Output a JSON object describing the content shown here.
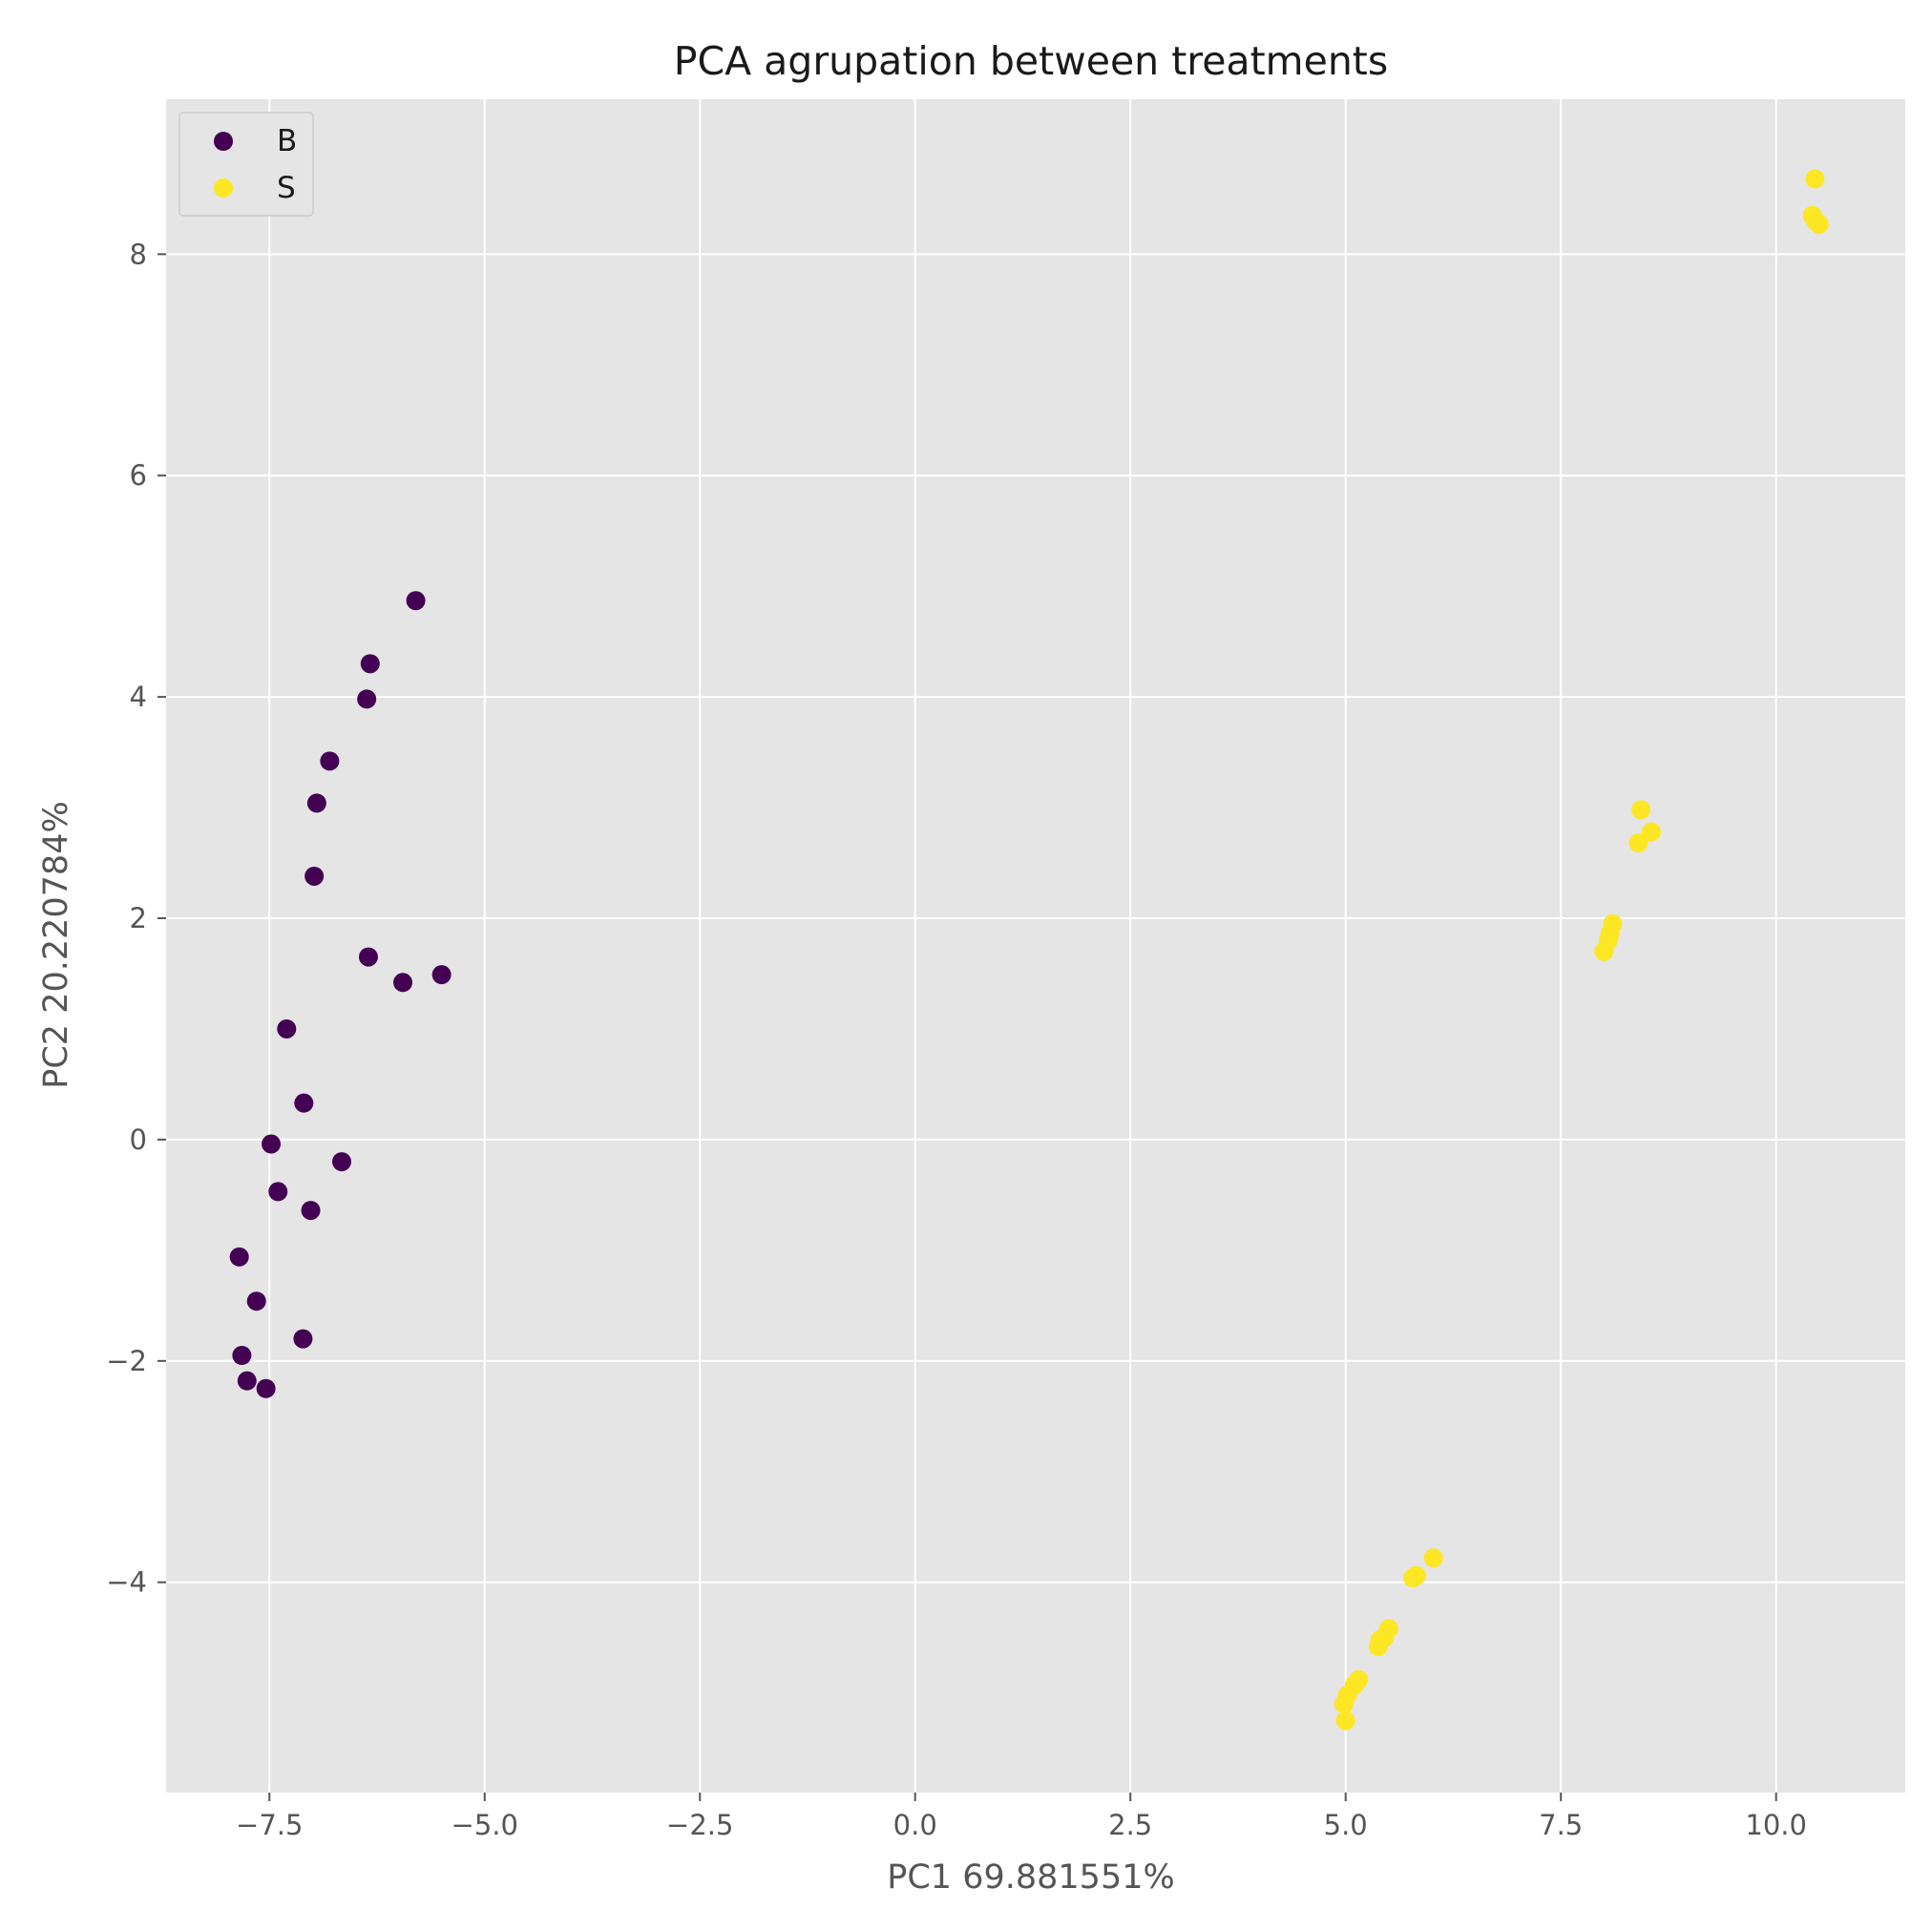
{
  "chart_data": {
    "type": "scatter",
    "title": "PCA agrupation between treatments",
    "xlabel": "PC1 69.881551%",
    "ylabel": "PC2 20.220784%",
    "xlim": [
      -8.7,
      11.5
    ],
    "ylim": [
      -5.9,
      9.4
    ],
    "xticks": [
      -7.5,
      -5.0,
      -2.5,
      0.0,
      2.5,
      5.0,
      7.5,
      10.0
    ],
    "xtick_labels": [
      "−7.5",
      "−5.0",
      "−2.5",
      "0.0",
      "2.5",
      "5.0",
      "7.5",
      "10.0"
    ],
    "yticks": [
      -4,
      -2,
      0,
      2,
      4,
      6,
      8
    ],
    "ytick_labels": [
      "−4",
      "−2",
      "0",
      "2",
      "4",
      "6",
      "8"
    ],
    "grid": true,
    "legend_position": "top-left",
    "background": "#e5e5e5",
    "series": [
      {
        "name": "B",
        "color": "#440154",
        "points": [
          [
            -5.8,
            4.87
          ],
          [
            -6.33,
            4.3
          ],
          [
            -6.37,
            3.98
          ],
          [
            -6.8,
            3.42
          ],
          [
            -6.95,
            3.04
          ],
          [
            -6.98,
            2.38
          ],
          [
            -6.35,
            1.65
          ],
          [
            -5.95,
            1.42
          ],
          [
            -5.5,
            1.49
          ],
          [
            -7.3,
            1.0
          ],
          [
            -7.1,
            0.33
          ],
          [
            -7.48,
            -0.04
          ],
          [
            -6.66,
            -0.2
          ],
          [
            -7.4,
            -0.47
          ],
          [
            -7.02,
            -0.64
          ],
          [
            -7.85,
            -1.06
          ],
          [
            -7.65,
            -1.46
          ],
          [
            -7.11,
            -1.8
          ],
          [
            -7.82,
            -1.95
          ],
          [
            -7.76,
            -2.18
          ],
          [
            -7.54,
            -2.25
          ]
        ]
      },
      {
        "name": "S",
        "color": "#fde725",
        "points": [
          [
            10.45,
            8.68
          ],
          [
            10.42,
            8.35
          ],
          [
            10.46,
            8.3
          ],
          [
            10.5,
            8.27
          ],
          [
            8.43,
            2.98
          ],
          [
            8.55,
            2.78
          ],
          [
            8.4,
            2.68
          ],
          [
            8.1,
            1.95
          ],
          [
            8.07,
            1.86
          ],
          [
            8.05,
            1.8
          ],
          [
            8.0,
            1.7
          ],
          [
            6.02,
            -3.78
          ],
          [
            5.82,
            -3.94
          ],
          [
            5.78,
            -3.96
          ],
          [
            5.5,
            -4.42
          ],
          [
            5.45,
            -4.5
          ],
          [
            5.4,
            -4.52
          ],
          [
            5.38,
            -4.58
          ],
          [
            5.15,
            -4.88
          ],
          [
            5.1,
            -4.93
          ],
          [
            5.02,
            -5.02
          ],
          [
            4.98,
            -5.1
          ],
          [
            5.0,
            -5.25
          ]
        ]
      }
    ]
  }
}
